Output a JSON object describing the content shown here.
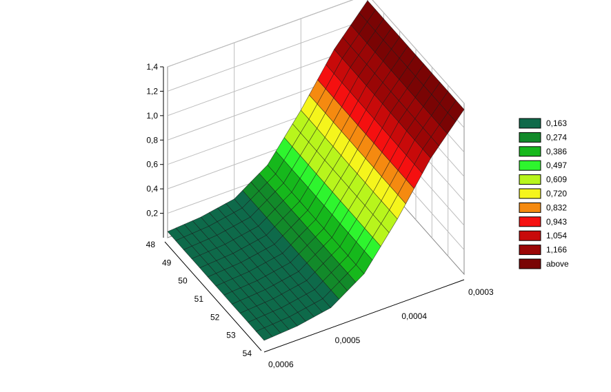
{
  "chart_data": {
    "type": "surface3d",
    "title": "",
    "x_axis": {
      "label": "",
      "ticks": [
        "48",
        "49",
        "50",
        "51",
        "52",
        "53",
        "54"
      ],
      "range": [
        48,
        54
      ]
    },
    "y_axis": {
      "label": "",
      "ticks": [
        "0,0006",
        "0,0005",
        "0,0004",
        "0,0003"
      ],
      "range": [
        0.0006,
        0.0003
      ]
    },
    "z_axis": {
      "label": "",
      "ticks": [
        "0,2",
        "0,4",
        "0,6",
        "0,8",
        "1,0",
        "1,2",
        "1,4"
      ],
      "range": [
        0.0,
        1.4
      ]
    },
    "surface_profile": {
      "description_units": "z as a function of y (nearly constant along x)",
      "y": [
        0.0006,
        0.00055,
        0.0005,
        0.00045,
        0.0004,
        0.00035,
        0.0003
      ],
      "z": [
        0.05,
        0.07,
        0.12,
        0.3,
        0.65,
        1.05,
        1.35
      ]
    },
    "legend": {
      "placement": "right",
      "items": [
        {
          "label": "0,163",
          "color": "#0e6a4a"
        },
        {
          "label": "0,274",
          "color": "#128a2a"
        },
        {
          "label": "0,386",
          "color": "#16b81c"
        },
        {
          "label": "0,497",
          "color": "#2ef52e"
        },
        {
          "label": "0,609",
          "color": "#b8f51c"
        },
        {
          "label": "0,720",
          "color": "#f5f51c"
        },
        {
          "label": "0,832",
          "color": "#f58a10"
        },
        {
          "label": "0,943",
          "color": "#f51010"
        },
        {
          "label": "1,054",
          "color": "#c80a0a"
        },
        {
          "label": "1,166",
          "color": "#9a0606"
        },
        {
          "label": "above",
          "color": "#7a0404"
        }
      ]
    },
    "grid": true
  }
}
